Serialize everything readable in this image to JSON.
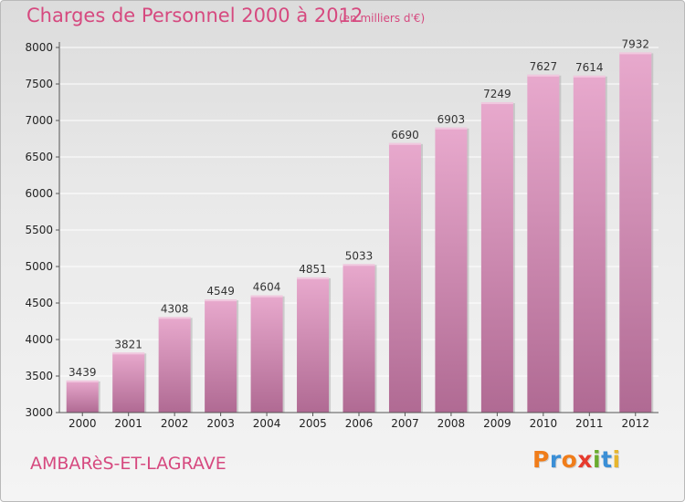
{
  "header": {
    "title": "Charges de Personnel 2000 à 2012",
    "subtitle": "(en milliers d'€)"
  },
  "footer": {
    "commune": "AMBARèS-ET-LAGRAVE",
    "logo_letters": [
      "P",
      "r",
      "o",
      "x",
      "i",
      "t",
      "i"
    ],
    "logo_colors": [
      "#f07d1a",
      "#3b8fd6",
      "#f07d1a",
      "#e63b2e",
      "#6aab2e",
      "#3b8fd6",
      "#e6b52e"
    ]
  },
  "colors": {
    "bar_top": "#e8a9cd",
    "bar_bottom": "#b06a93",
    "text_accent": "#d6497f"
  },
  "chart_data": {
    "type": "bar",
    "title": "Charges de Personnel 2000 à 2012",
    "subtitle": "(en milliers d'€)",
    "categories": [
      "2000",
      "2001",
      "2002",
      "2003",
      "2004",
      "2005",
      "2006",
      "2007",
      "2008",
      "2009",
      "2010",
      "2011",
      "2012"
    ],
    "values": [
      3439,
      3821,
      4308,
      4549,
      4604,
      4851,
      5033,
      6690,
      6903,
      7249,
      7627,
      7614,
      7932
    ],
    "ylim": [
      3000,
      8000
    ],
    "yticks": [
      3000,
      3500,
      4000,
      4500,
      5000,
      5500,
      6000,
      6500,
      7000,
      7500,
      8000
    ],
    "grid": true,
    "legend": "none"
  }
}
